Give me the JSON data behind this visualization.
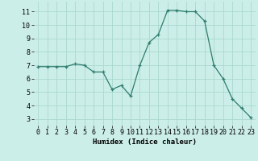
{
  "x": [
    0,
    1,
    2,
    3,
    4,
    5,
    6,
    7,
    8,
    9,
    10,
    11,
    12,
    13,
    14,
    15,
    16,
    17,
    18,
    19,
    20,
    21,
    22,
    23
  ],
  "y": [
    6.9,
    6.9,
    6.9,
    6.9,
    7.1,
    7.0,
    6.5,
    6.5,
    5.2,
    5.5,
    4.7,
    7.0,
    8.7,
    9.3,
    11.1,
    11.1,
    11.0,
    11.0,
    10.3,
    7.0,
    6.0,
    4.5,
    3.8,
    3.1
  ],
  "xlim": [
    -0.5,
    23.5
  ],
  "ylim": [
    2.5,
    11.75
  ],
  "yticks": [
    3,
    4,
    5,
    6,
    7,
    8,
    9,
    10,
    11
  ],
  "xticks": [
    0,
    1,
    2,
    3,
    4,
    5,
    6,
    7,
    8,
    9,
    10,
    11,
    12,
    13,
    14,
    15,
    16,
    17,
    18,
    19,
    20,
    21,
    22,
    23
  ],
  "xlabel": "Humidex (Indice chaleur)",
  "line_color": "#2d7d6e",
  "marker": "+",
  "bg_color": "#cceee8",
  "grid_color": "#aad8d0",
  "xlabel_fontsize": 6.5,
  "tick_fontsize": 6
}
